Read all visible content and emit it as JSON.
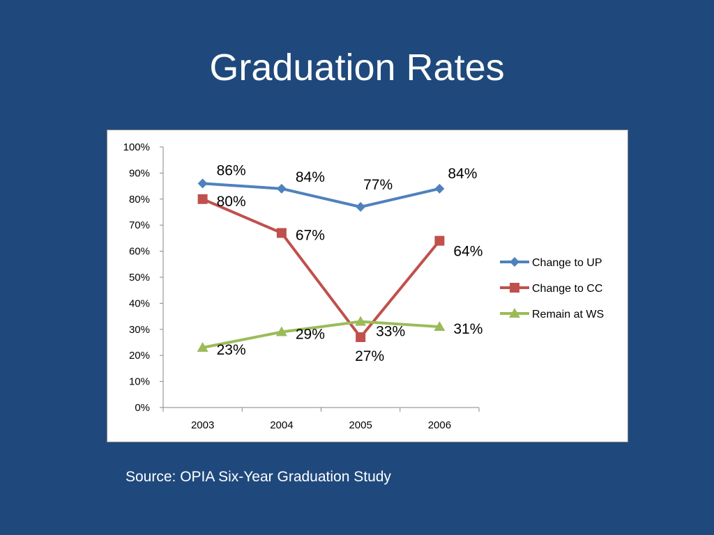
{
  "slide": {
    "title": "Graduation Rates",
    "source": "Source: OPIA Six-Year Graduation Study"
  },
  "chart_data": {
    "type": "line",
    "categories": [
      "2003",
      "2004",
      "2005",
      "2006"
    ],
    "ylim": [
      0,
      100
    ],
    "y_ticks": [
      "0%",
      "10%",
      "20%",
      "30%",
      "40%",
      "50%",
      "60%",
      "70%",
      "80%",
      "90%",
      "100%"
    ],
    "grid": false,
    "legend_position": "right",
    "series": [
      {
        "name": "Change to UP",
        "values": [
          86,
          84,
          77,
          84
        ],
        "labels": [
          "86%",
          "84%",
          "77%",
          "84%"
        ],
        "color": "#4f81bd",
        "marker": "diamond"
      },
      {
        "name": "Change to CC",
        "values": [
          80,
          67,
          27,
          64
        ],
        "labels": [
          "80%",
          "67%",
          "27%",
          "64%"
        ],
        "color": "#c0504d",
        "marker": "square"
      },
      {
        "name": "Remain at WS",
        "values": [
          23,
          29,
          33,
          31
        ],
        "labels": [
          "23%",
          "29%",
          "33%",
          "31%"
        ],
        "color": "#9bbb59",
        "marker": "triangle"
      }
    ]
  }
}
